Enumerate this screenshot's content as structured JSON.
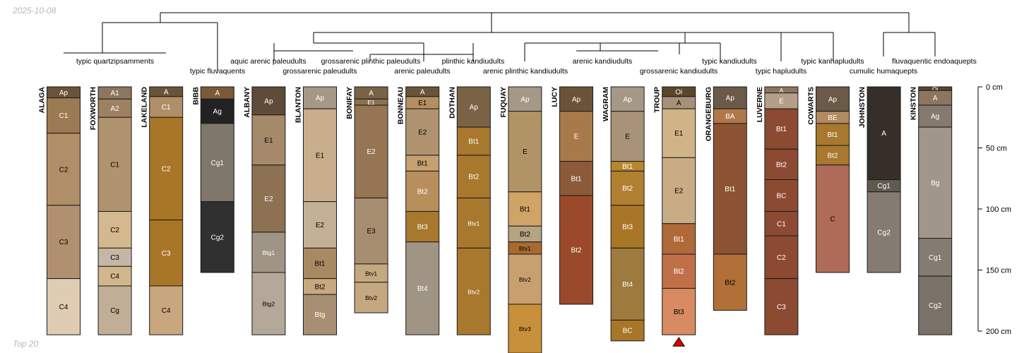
{
  "header": {
    "date": "2025-10-08"
  },
  "footer": {
    "label": "Top 20"
  },
  "chart_data": {
    "type": "soil-profile-sketch",
    "title": "",
    "depth_axis": {
      "label_unit": "cm",
      "ticks": [
        0,
        50,
        100,
        150,
        200
      ]
    },
    "groups": [
      {
        "label": "typic quartzipsamments"
      },
      {
        "label": "typic fluvaquents"
      },
      {
        "label": "aquic arenic paleudults"
      },
      {
        "label": "grossarenic paleudults"
      },
      {
        "label": "grossarenic plinthic paleudults"
      },
      {
        "label": "arenic paleudults"
      },
      {
        "label": "plinthic kandiudults"
      },
      {
        "label": "arenic plinthic kandiudults"
      },
      {
        "label": "arenic kandiudults"
      },
      {
        "label": "grossarenic kandiudults"
      },
      {
        "label": "typic kandiudults"
      },
      {
        "label": "typic hapludults"
      },
      {
        "label": "typic kanhapludults"
      },
      {
        "label": "cumulic humaquepts"
      },
      {
        "label": "fluvaquentic endoaquepts"
      }
    ],
    "profiles": [
      {
        "name": "ALAGA",
        "horizons": [
          {
            "name": "Ap",
            "top": 0,
            "bottom": 9,
            "color": "#6b5339",
            "text": "#ffffff"
          },
          {
            "name": "C1",
            "top": 9,
            "bottom": 38,
            "color": "#9c7a53",
            "text": "#ffffff"
          },
          {
            "name": "C2",
            "top": 38,
            "bottom": 97,
            "color": "#b08e67",
            "text": "#000000"
          },
          {
            "name": "C3",
            "top": 97,
            "bottom": 157,
            "color": "#b09070",
            "text": "#000000"
          },
          {
            "name": "C4",
            "top": 157,
            "bottom": 203,
            "color": "#e0ccb2",
            "text": "#000000"
          }
        ]
      },
      {
        "name": "FOXWORTH",
        "horizons": [
          {
            "name": "A1",
            "top": 0,
            "bottom": 10,
            "color": "#8c7660",
            "text": "#ffffff"
          },
          {
            "name": "A2",
            "top": 10,
            "bottom": 25,
            "color": "#9e8260",
            "text": "#ffffff"
          },
          {
            "name": "C1",
            "top": 25,
            "bottom": 102,
            "color": "#b09470",
            "text": "#000000"
          },
          {
            "name": "C2",
            "top": 102,
            "bottom": 132,
            "color": "#d4b88e",
            "text": "#000000"
          },
          {
            "name": "C3",
            "top": 132,
            "bottom": 147,
            "color": "#c6b6a6",
            "text": "#000000"
          },
          {
            "name": "C4",
            "top": 147,
            "bottom": 163,
            "color": "#d2b68c",
            "text": "#000000"
          },
          {
            "name": "Cg",
            "top": 163,
            "bottom": 203,
            "color": "#c0ae96",
            "text": "#000000"
          }
        ]
      },
      {
        "name": "LAKELAND",
        "horizons": [
          {
            "name": "A",
            "top": 0,
            "bottom": 8,
            "color": "#6b5339",
            "text": "#ffffff"
          },
          {
            "name": "C1",
            "top": 8,
            "bottom": 25,
            "color": "#b08e67",
            "text": "#ffffff"
          },
          {
            "name": "C2",
            "top": 25,
            "bottom": 109,
            "color": "#a87626",
            "text": "#ffffff"
          },
          {
            "name": "C3",
            "top": 109,
            "bottom": 163,
            "color": "#a87626",
            "text": "#ffffff"
          },
          {
            "name": "C4",
            "top": 163,
            "bottom": 203,
            "color": "#c8a77f",
            "text": "#000000"
          }
        ]
      },
      {
        "name": "BIBB",
        "horizons": [
          {
            "name": "A",
            "top": 0,
            "bottom": 10,
            "color": "#7a5a38",
            "text": "#ffffff"
          },
          {
            "name": "Ag",
            "top": 10,
            "bottom": 30,
            "color": "#222222",
            "text": "#ffffff"
          },
          {
            "name": "Cg1",
            "top": 30,
            "bottom": 94,
            "color": "#7e776a",
            "text": "#ffffff"
          },
          {
            "name": "Cg2",
            "top": 94,
            "bottom": 152,
            "color": "#303030",
            "text": "#ffffff"
          }
        ]
      },
      {
        "name": "ALBANY",
        "horizons": [
          {
            "name": "Ap",
            "top": 0,
            "bottom": 23,
            "color": "#5e4b3a",
            "text": "#ffffff"
          },
          {
            "name": "E1",
            "top": 23,
            "bottom": 64,
            "color": "#a48a6a",
            "text": "#000000"
          },
          {
            "name": "E2",
            "top": 64,
            "bottom": 119,
            "color": "#8c7152",
            "text": "#ffffff"
          },
          {
            "name": "Btg1",
            "top": 119,
            "bottom": 152,
            "color": "#a09484",
            "text": "#ffffff"
          },
          {
            "name": "Btg2",
            "top": 152,
            "bottom": 203,
            "color": "#b4a898",
            "text": "#000000"
          }
        ]
      },
      {
        "name": "BLANTON",
        "horizons": [
          {
            "name": "Ap",
            "top": 0,
            "bottom": 18,
            "color": "#a69886",
            "text": "#ffffff"
          },
          {
            "name": "E1",
            "top": 18,
            "bottom": 94,
            "color": "#c8ae8c",
            "text": "#000000"
          },
          {
            "name": "E2",
            "top": 94,
            "bottom": 132,
            "color": "#c4b096",
            "text": "#000000"
          },
          {
            "name": "Bt1",
            "top": 132,
            "bottom": 157,
            "color": "#a88a62",
            "text": "#000000"
          },
          {
            "name": "Bt2",
            "top": 157,
            "bottom": 170,
            "color": "#c8a880",
            "text": "#000000"
          },
          {
            "name": "Btg",
            "top": 170,
            "bottom": 203,
            "color": "#a88e72",
            "text": "#ffffff"
          }
        ]
      },
      {
        "name": "BONIFAY",
        "horizons": [
          {
            "name": "A",
            "top": 0,
            "bottom": 10,
            "color": "#7a6246",
            "text": "#ffffff"
          },
          {
            "name": "E1",
            "top": 10,
            "bottom": 15,
            "color": "#8c7250",
            "text": "#ffffff"
          },
          {
            "name": "E2",
            "top": 15,
            "bottom": 91,
            "color": "#957552",
            "text": "#ffffff"
          },
          {
            "name": "E3",
            "top": 91,
            "bottom": 145,
            "color": "#a88e70",
            "text": "#000000"
          },
          {
            "name": "Btv1",
            "top": 145,
            "bottom": 160,
            "color": "#c4a880",
            "text": "#000000"
          },
          {
            "name": "Btv2",
            "top": 160,
            "bottom": 185,
            "color": "#c4a880",
            "text": "#000000"
          }
        ]
      },
      {
        "name": "BONNEAU",
        "horizons": [
          {
            "name": "A",
            "top": 0,
            "bottom": 8,
            "color": "#6b5339",
            "text": "#ffffff"
          },
          {
            "name": "E1",
            "top": 8,
            "bottom": 18,
            "color": "#b49060",
            "text": "#000000"
          },
          {
            "name": "E2",
            "top": 18,
            "bottom": 56,
            "color": "#b09470",
            "text": "#000000"
          },
          {
            "name": "Bt1",
            "top": 56,
            "bottom": 69,
            "color": "#c8a070",
            "text": "#000000"
          },
          {
            "name": "Bt2",
            "top": 69,
            "bottom": 102,
            "color": "#b88e5c",
            "text": "#ffffff"
          },
          {
            "name": "Bt3",
            "top": 102,
            "bottom": 127,
            "color": "#a8782e",
            "text": "#ffffff"
          },
          {
            "name": "Bt4",
            "top": 127,
            "bottom": 203,
            "color": "#a09484",
            "text": "#ffffff"
          }
        ]
      },
      {
        "name": "DOTHAN",
        "horizons": [
          {
            "name": "Ap",
            "top": 0,
            "bottom": 33,
            "color": "#7a6246",
            "text": "#ffffff"
          },
          {
            "name": "Bt1",
            "top": 33,
            "bottom": 56,
            "color": "#a8782e",
            "text": "#ffffff"
          },
          {
            "name": "Bt2",
            "top": 56,
            "bottom": 91,
            "color": "#a8782e",
            "text": "#ffffff"
          },
          {
            "name": "Btv1",
            "top": 91,
            "bottom": 132,
            "color": "#a8782e",
            "text": "#ffffff"
          },
          {
            "name": "Btv2",
            "top": 132,
            "bottom": 203,
            "color": "#a8782e",
            "text": "#ffffff"
          }
        ]
      },
      {
        "name": "FUQUAY",
        "horizons": [
          {
            "name": "Ap",
            "top": 0,
            "bottom": 20,
            "color": "#a69886",
            "text": "#ffffff"
          },
          {
            "name": "E",
            "top": 20,
            "bottom": 86,
            "color": "#b09466",
            "text": "#000000"
          },
          {
            "name": "Bt1",
            "top": 86,
            "bottom": 114,
            "color": "#d0a466",
            "text": "#000000"
          },
          {
            "name": "Bt2",
            "top": 114,
            "bottom": 127,
            "color": "#b4a484",
            "text": "#000000"
          },
          {
            "name": "Btv1",
            "top": 127,
            "bottom": 137,
            "color": "#a86a2e",
            "text": "#000000"
          },
          {
            "name": "Btv2",
            "top": 137,
            "bottom": 178,
            "color": "#c8a070",
            "text": "#000000"
          },
          {
            "name": "Btv3",
            "top": 178,
            "bottom": 218,
            "color": "#c8903a",
            "text": "#000000"
          }
        ]
      },
      {
        "name": "LUCY",
        "horizons": [
          {
            "name": "Ap",
            "top": 0,
            "bottom": 20,
            "color": "#6b5339",
            "text": "#ffffff"
          },
          {
            "name": "E",
            "top": 20,
            "bottom": 61,
            "color": "#a87a4a",
            "text": "#ffffff"
          },
          {
            "name": "Bt1",
            "top": 61,
            "bottom": 89,
            "color": "#8c5a38",
            "text": "#ffffff"
          },
          {
            "name": "Bt2",
            "top": 89,
            "bottom": 178,
            "color": "#9a4a2a",
            "text": "#ffffff"
          }
        ]
      },
      {
        "name": "WAGRAM",
        "horizons": [
          {
            "name": "Ap",
            "top": 0,
            "bottom": 20,
            "color": "#a69886",
            "text": "#ffffff"
          },
          {
            "name": "E",
            "top": 20,
            "bottom": 61,
            "color": "#a89278",
            "text": "#000000"
          },
          {
            "name": "Bt1",
            "top": 61,
            "bottom": 69,
            "color": "#b8862e",
            "text": "#ffffff"
          },
          {
            "name": "Bt2",
            "top": 69,
            "bottom": 97,
            "color": "#b08030",
            "text": "#ffffff"
          },
          {
            "name": "Bt3",
            "top": 97,
            "bottom": 132,
            "color": "#a87626",
            "text": "#ffffff"
          },
          {
            "name": "Bt4",
            "top": 132,
            "bottom": 191,
            "color": "#9e7a3e",
            "text": "#ffffff"
          },
          {
            "name": "BC",
            "top": 191,
            "bottom": 208,
            "color": "#a87626",
            "text": "#ffffff"
          }
        ]
      },
      {
        "name": "TROUP",
        "horizons": [
          {
            "name": "Oi",
            "top": 0,
            "bottom": 8,
            "color": "#5a4628",
            "text": "#ffffff"
          },
          {
            "name": "A",
            "top": 8,
            "bottom": 18,
            "color": "#a69078",
            "text": "#000000"
          },
          {
            "name": "E1",
            "top": 18,
            "bottom": 58,
            "color": "#d0b488",
            "text": "#000000"
          },
          {
            "name": "E2",
            "top": 58,
            "bottom": 112,
            "color": "#c8ac84",
            "text": "#000000"
          },
          {
            "name": "Bt1",
            "top": 112,
            "bottom": 137,
            "color": "#b06a3a",
            "text": "#ffffff"
          },
          {
            "name": "Bt2",
            "top": 137,
            "bottom": 165,
            "color": "#c07048",
            "text": "#ffffff"
          },
          {
            "name": "Bt3",
            "top": 165,
            "bottom": 203,
            "color": "#d88a60",
            "text": "#000000"
          }
        ],
        "truncated": true
      },
      {
        "name": "ORANGEBURG",
        "horizons": [
          {
            "name": "Ap",
            "top": 0,
            "bottom": 18,
            "color": "#6b5a48",
            "text": "#ffffff"
          },
          {
            "name": "BA",
            "top": 18,
            "bottom": 30,
            "color": "#b0784a",
            "text": "#ffffff"
          },
          {
            "name": "Bt1",
            "top": 30,
            "bottom": 137,
            "color": "#8c5432",
            "text": "#ffffff"
          },
          {
            "name": "Bt2",
            "top": 137,
            "bottom": 183,
            "color": "#b07038",
            "text": "#000000"
          }
        ]
      },
      {
        "name": "LUVERNE",
        "horizons": [
          {
            "name": "A",
            "top": 0,
            "bottom": 5,
            "color": "#8c7660",
            "text": "#ffffff"
          },
          {
            "name": "E",
            "top": 5,
            "bottom": 18,
            "color": "#b4a088",
            "text": "#ffffff"
          },
          {
            "name": "Bt1",
            "top": 18,
            "bottom": 51,
            "color": "#8c4a32",
            "text": "#ffffff"
          },
          {
            "name": "Bt2",
            "top": 51,
            "bottom": 76,
            "color": "#8c4a32",
            "text": "#ffffff"
          },
          {
            "name": "BC",
            "top": 76,
            "bottom": 102,
            "color": "#8c4a32",
            "text": "#ffffff"
          },
          {
            "name": "C1",
            "top": 102,
            "bottom": 122,
            "color": "#8c4a32",
            "text": "#ffffff"
          },
          {
            "name": "C2",
            "top": 122,
            "bottom": 157,
            "color": "#8c4a32",
            "text": "#ffffff"
          },
          {
            "name": "C3",
            "top": 157,
            "bottom": 203,
            "color": "#8c4a32",
            "text": "#ffffff"
          }
        ]
      },
      {
        "name": "COWARTS",
        "horizons": [
          {
            "name": "Ap",
            "top": 0,
            "bottom": 20,
            "color": "#6b5a48",
            "text": "#ffffff"
          },
          {
            "name": "BE",
            "top": 20,
            "bottom": 30,
            "color": "#b08a60",
            "text": "#ffffff"
          },
          {
            "name": "Bt1",
            "top": 30,
            "bottom": 48,
            "color": "#a8782e",
            "text": "#ffffff"
          },
          {
            "name": "Bt2",
            "top": 48,
            "bottom": 64,
            "color": "#a8782e",
            "text": "#ffffff"
          },
          {
            "name": "C",
            "top": 64,
            "bottom": 152,
            "color": "#b06a58",
            "text": "#000000"
          }
        ]
      },
      {
        "name": "JOHNSTON",
        "horizons": [
          {
            "name": "A",
            "top": 0,
            "bottom": 76,
            "color": "#362e28",
            "text": "#ffffff"
          },
          {
            "name": "Cg1",
            "top": 76,
            "bottom": 86,
            "color": "#5e5a50",
            "text": "#ffffff"
          },
          {
            "name": "Cg2",
            "top": 86,
            "bottom": 152,
            "color": "#847c72",
            "text": "#ffffff"
          }
        ]
      },
      {
        "name": "KINSTON",
        "horizons": [
          {
            "name": "Oi",
            "top": 0,
            "bottom": 3,
            "color": "#5a4628",
            "text": "#ffffff"
          },
          {
            "name": "A",
            "top": 3,
            "bottom": 15,
            "color": "#8c7660",
            "text": "#ffffff"
          },
          {
            "name": "Ag",
            "top": 15,
            "bottom": 33,
            "color": "#847a6e",
            "text": "#ffffff"
          },
          {
            "name": "Bg",
            "top": 33,
            "bottom": 124,
            "color": "#a0968a",
            "text": "#ffffff"
          },
          {
            "name": "Cg1",
            "top": 124,
            "bottom": 155,
            "color": "#847c72",
            "text": "#ffffff"
          },
          {
            "name": "Cg2",
            "top": 155,
            "bottom": 203,
            "color": "#7a7268",
            "text": "#ffffff"
          }
        ]
      }
    ]
  }
}
